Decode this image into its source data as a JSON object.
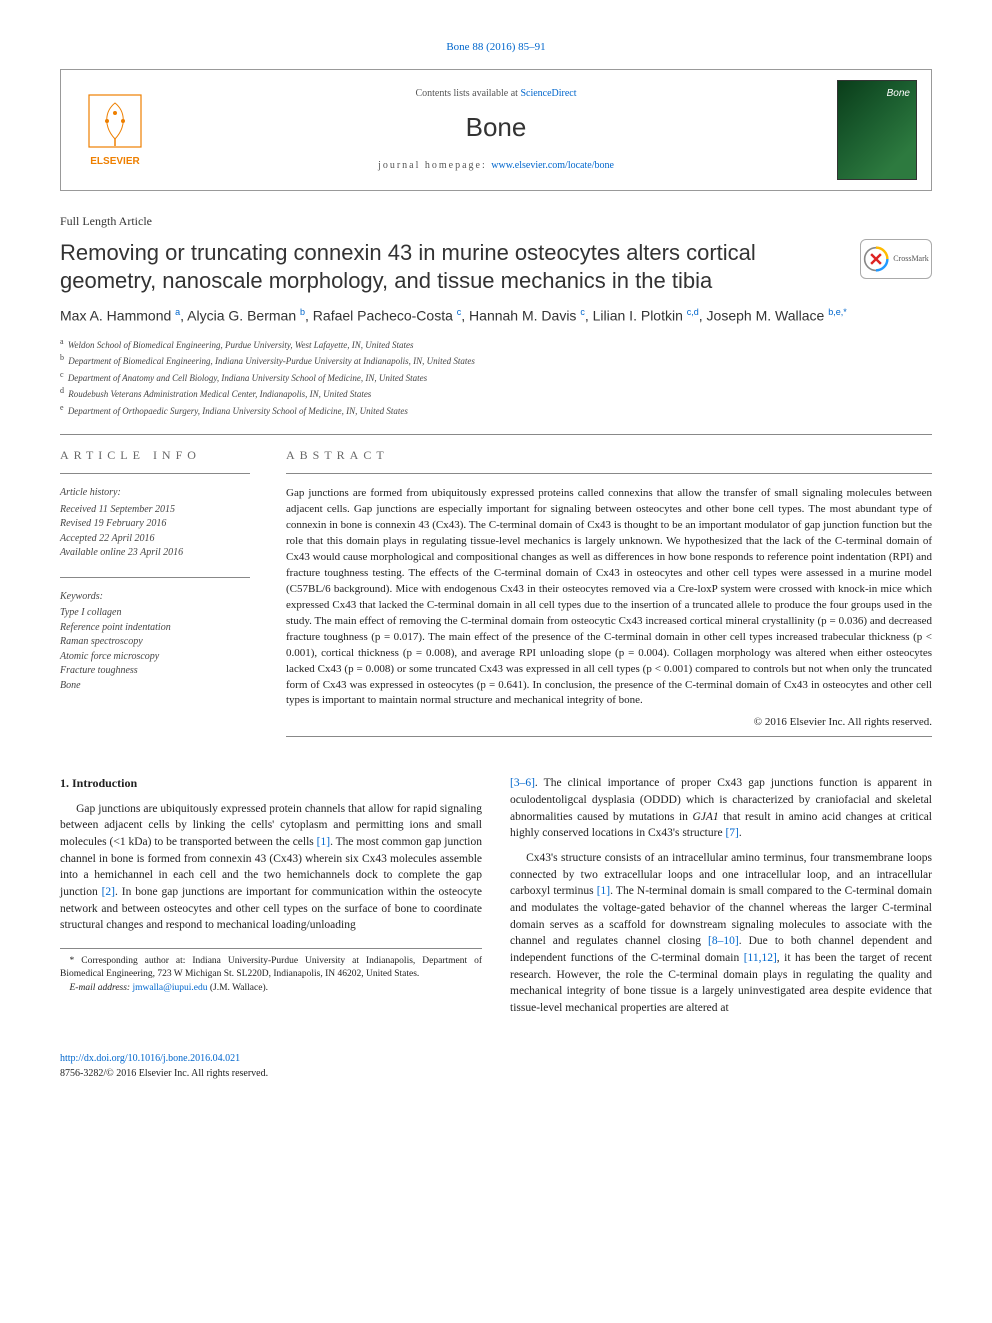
{
  "journal_ref": {
    "text": "Bone 88 (2016) 85–91",
    "link_color": "#0066cc"
  },
  "header": {
    "publisher_name": "ELSEVIER",
    "contents_prefix": "Contents lists available at ",
    "contents_link": "ScienceDirect",
    "journal_name": "Bone",
    "homepage_prefix": "journal homepage: ",
    "homepage_link": "www.elsevier.com/locate/bone",
    "cover_background": "linear-gradient(135deg,#0a3d1a,#2d7a3f)"
  },
  "article_type": "Full Length Article",
  "title": "Removing or truncating connexin 43 in murine osteocytes alters cortical geometry, nanoscale morphology, and tissue mechanics in the tibia",
  "crossmark_label": "CrossMark",
  "authors_html": "Max A. Hammond <sup>a</sup>, Alycia G. Berman <sup>b</sup>, Rafael Pacheco-Costa <sup>c</sup>, Hannah M. Davis <sup>c</sup>, Lilian I. Plotkin <sup>c,d</sup>, Joseph M. Wallace <sup>b,e,*</sup>",
  "affiliations": [
    {
      "sup": "a",
      "text": "Weldon School of Biomedical Engineering, Purdue University, West Lafayette, IN, United States"
    },
    {
      "sup": "b",
      "text": "Department of Biomedical Engineering, Indiana University-Purdue University at Indianapolis, IN, United States"
    },
    {
      "sup": "c",
      "text": "Department of Anatomy and Cell Biology, Indiana University School of Medicine, IN, United States"
    },
    {
      "sup": "d",
      "text": "Roudebush Veterans Administration Medical Center, Indianapolis, IN, United States"
    },
    {
      "sup": "e",
      "text": "Department of Orthopaedic Surgery, Indiana University School of Medicine, IN, United States"
    }
  ],
  "article_info": {
    "heading": "ARTICLE INFO",
    "history_label": "Article history:",
    "history": [
      "Received 11 September 2015",
      "Revised 19 February 2016",
      "Accepted 22 April 2016",
      "Available online 23 April 2016"
    ],
    "keywords_label": "Keywords:",
    "keywords": [
      "Type I collagen",
      "Reference point indentation",
      "Raman spectroscopy",
      "Atomic force microscopy",
      "Fracture toughness",
      "Bone"
    ]
  },
  "abstract": {
    "heading": "ABSTRACT",
    "text": "Gap junctions are formed from ubiquitously expressed proteins called connexins that allow the transfer of small signaling molecules between adjacent cells. Gap junctions are especially important for signaling between osteocytes and other bone cell types. The most abundant type of connexin in bone is connexin 43 (Cx43). The C-terminal domain of Cx43 is thought to be an important modulator of gap junction function but the role that this domain plays in regulating tissue-level mechanics is largely unknown. We hypothesized that the lack of the C-terminal domain of Cx43 would cause morphological and compositional changes as well as differences in how bone responds to reference point indentation (RPI) and fracture toughness testing. The effects of the C-terminal domain of Cx43 in osteocytes and other cell types were assessed in a murine model (C57BL/6 background). Mice with endogenous Cx43 in their osteocytes removed via a Cre-loxP system were crossed with knock-in mice which expressed Cx43 that lacked the C-terminal domain in all cell types due to the insertion of a truncated allele to produce the four groups used in the study. The main effect of removing the C-terminal domain from osteocytic Cx43 increased cortical mineral crystallinity (p = 0.036) and decreased fracture toughness (p = 0.017). The main effect of the presence of the C-terminal domain in other cell types increased trabecular thickness (p < 0.001), cortical thickness (p = 0.008), and average RPI unloading slope (p = 0.004). Collagen morphology was altered when either osteocytes lacked Cx43 (p = 0.008) or some truncated Cx43 was expressed in all cell types (p < 0.001) compared to controls but not when only the truncated form of Cx43 was expressed in osteocytes (p = 0.641). In conclusion, the presence of the C-terminal domain of Cx43 in osteocytes and other cell types is important to maintain normal structure and mechanical integrity of bone.",
    "copyright": "© 2016 Elsevier Inc. All rights reserved."
  },
  "body": {
    "heading": "1. Introduction",
    "p1_pre": "Gap junctions are ubiquitously expressed protein channels that allow for rapid signaling between adjacent cells by linking the cells' cytoplasm and permitting ions and small molecules (<1 kDa) to be transported between the cells ",
    "p1_ref1": "[1]",
    "p1_mid": ". The most common gap junction channel in bone is formed from connexin 43 (Cx43) wherein six Cx43 molecules assemble into a hemichannel in each cell and the two hemichannels dock to complete the gap junction ",
    "p1_ref2": "[2]",
    "p1_post": ". In bone gap junctions are important for communication within the osteocyte network and between osteocytes and other cell types on the surface of bone to coordinate structural changes and respond to mechanical loading/unloading ",
    "p2_ref1": "[3–6]",
    "p2_a": ". The clinical importance of proper Cx43 gap junctions function is apparent in oculodentoligcal dysplasia (ODDD) which is characterized by craniofacial and skeletal abnormalities caused by mutations in ",
    "p2_gene": "GJA1",
    "p2_b": " that result in amino acid changes at critical highly conserved locations in Cx43's structure ",
    "p2_ref2": "[7]",
    "p2_c": ".",
    "p3_a": "Cx43's structure consists of an intracellular amino terminus, four transmembrane loops connected by two extracellular loops and one intracellular loop, and an intracellular carboxyl terminus ",
    "p3_ref1": "[1]",
    "p3_b": ". The N-terminal domain is small compared to the C-terminal domain and modulates the voltage-gated behavior of the channel whereas the larger C-terminal domain serves as a scaffold for downstream signaling molecules to associate with the channel and regulates channel closing ",
    "p3_ref2": "[8–10]",
    "p3_c": ". Due to both channel dependent and independent functions of the C-terminal domain ",
    "p3_ref3": "[11,12]",
    "p3_d": ", it has been the target of recent research. However, the role the C-terminal domain plays in regulating the quality and mechanical integrity of bone tissue is a largely uninvestigated area despite evidence that tissue-level mechanical properties are altered at"
  },
  "footnote": {
    "corr_label": "* Corresponding author at: Indiana University-Purdue University at Indianapolis, Department of Biomedical Engineering, 723 W Michigan St. SL220D, Indianapolis, IN 46202, United States.",
    "email_label": "E-mail address: ",
    "email": "jmwalla@iupui.edu",
    "email_suffix": " (J.M. Wallace)."
  },
  "footer": {
    "doi": "http://dx.doi.org/10.1016/j.bone.2016.04.021",
    "issn_line": "8756-3282/© 2016 Elsevier Inc. All rights reserved."
  },
  "colors": {
    "link": "#0066cc",
    "rule": "#888888",
    "text": "#222222",
    "elsevier_orange": "#ee7f00"
  }
}
